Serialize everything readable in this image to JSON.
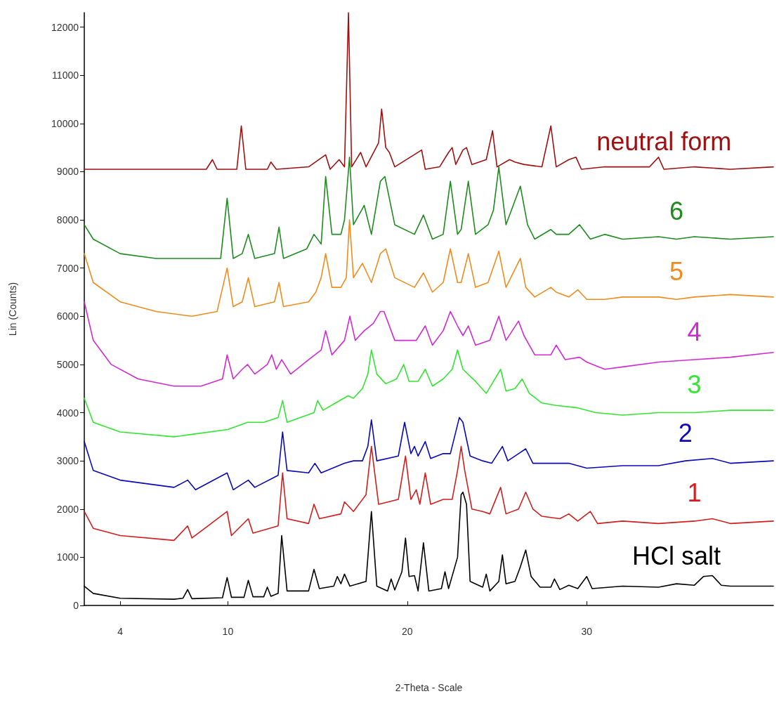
{
  "chart_data": {
    "type": "line",
    "xlabel": "2-Theta - Scale",
    "ylabel": "Lin (Counts)",
    "xlim": [
      2,
      40.4
    ],
    "xticks": [
      4,
      10,
      20,
      30
    ],
    "ylim": [
      0,
      12300
    ],
    "yticks": [
      0,
      1000,
      2000,
      3000,
      4000,
      5000,
      6000,
      7000,
      8000,
      9000,
      10000,
      11000,
      12000
    ],
    "grid": false,
    "legend": false,
    "marker": "none",
    "line_style": "solid",
    "series": [
      {
        "name": "HCl salt",
        "color": "#000000",
        "x": [
          2,
          2.5,
          4,
          7,
          7.5,
          7.76,
          8,
          9.7,
          9.96,
          10.2,
          10.9,
          11.14,
          11.4,
          12,
          12.2,
          12.4,
          12.8,
          13,
          13.3,
          14.5,
          14.8,
          15.1,
          15.9,
          16.1,
          16.3,
          16.5,
          16.8,
          17.7,
          18,
          18.3,
          18.9,
          19.1,
          19.3,
          19.7,
          19.9,
          20.1,
          20.4,
          20.6,
          20.9,
          21.2,
          21.9,
          22.1,
          22.3,
          22.8,
          23,
          23.1,
          23.3,
          23.5,
          24.2,
          24.4,
          24.6,
          25.1,
          25.3,
          25.5,
          26,
          26.3,
          26.6,
          26.9,
          27.4,
          28,
          28.2,
          28.5,
          29,
          29.5,
          30,
          30.3,
          32,
          34,
          35,
          36,
          36.5,
          37,
          37.5,
          38,
          40.4
        ],
        "values": [
          400,
          250,
          150,
          130,
          150,
          330,
          140,
          160,
          580,
          170,
          170,
          520,
          180,
          180,
          380,
          190,
          250,
          1450,
          300,
          300,
          750,
          350,
          400,
          600,
          450,
          650,
          400,
          500,
          1950,
          400,
          300,
          550,
          320,
          700,
          1400,
          600,
          620,
          300,
          1300,
          300,
          350,
          700,
          350,
          1000,
          2300,
          2350,
          2100,
          500,
          380,
          650,
          300,
          500,
          1050,
          450,
          500,
          800,
          1150,
          600,
          380,
          380,
          550,
          330,
          420,
          350,
          600,
          350,
          400,
          380,
          450,
          420,
          600,
          620,
          420,
          400,
          400
        ]
      },
      {
        "name": "1",
        "color": "#d21e1e",
        "x": [
          2,
          2.5,
          4,
          7,
          7.76,
          8,
          9.96,
          10.2,
          11.14,
          11.4,
          12.8,
          13.05,
          13.3,
          14.5,
          14.8,
          15.1,
          16.3,
          16.5,
          17,
          17.7,
          18,
          18.4,
          19.5,
          19.9,
          20.2,
          20.5,
          20.7,
          21,
          21.3,
          22,
          22.5,
          22.8,
          23,
          23.2,
          23.6,
          24.2,
          24.6,
          25.2,
          25.5,
          26.2,
          26.6,
          27,
          27.5,
          28.5,
          29,
          29.5,
          30.2,
          30.6,
          32,
          34,
          36,
          37,
          38,
          40.4
        ],
        "values": [
          1950,
          1600,
          1450,
          1350,
          1650,
          1400,
          1950,
          1450,
          1800,
          1500,
          1650,
          2750,
          1800,
          1700,
          2100,
          1800,
          1900,
          2150,
          1950,
          2300,
          3300,
          2100,
          2200,
          3100,
          2200,
          2400,
          2100,
          2750,
          2100,
          2200,
          2200,
          2800,
          3300,
          2800,
          2000,
          1950,
          1900,
          2450,
          1900,
          2000,
          2350,
          2000,
          1850,
          1800,
          1900,
          1750,
          1950,
          1700,
          1750,
          1700,
          1750,
          1800,
          1700,
          1750
        ]
      },
      {
        "name": "2",
        "color": "#0a0aba",
        "x": [
          2,
          2.5,
          4,
          7,
          7.76,
          8.2,
          9.96,
          10.3,
          11.14,
          11.5,
          12.8,
          13.05,
          13.3,
          14.5,
          14.85,
          15.2,
          16.5,
          17,
          17.5,
          17.8,
          18,
          18.3,
          19.5,
          19.85,
          20.2,
          20.4,
          20.6,
          21,
          21.3,
          22,
          22.4,
          22.9,
          23.1,
          23.5,
          24.2,
          24.7,
          25.3,
          25.6,
          26.2,
          26.6,
          27,
          28,
          29,
          30,
          32,
          34,
          35.5,
          37,
          38,
          40.4
        ],
        "values": [
          3400,
          2800,
          2600,
          2450,
          2600,
          2400,
          2750,
          2400,
          2600,
          2450,
          2700,
          3600,
          2800,
          2750,
          2950,
          2750,
          2950,
          3000,
          3000,
          3300,
          3850,
          3000,
          3100,
          3800,
          3150,
          3300,
          3100,
          3400,
          3050,
          3150,
          3150,
          3900,
          3800,
          3100,
          3000,
          2950,
          3300,
          3000,
          3150,
          3250,
          2950,
          2950,
          2950,
          2850,
          2900,
          2900,
          3000,
          3050,
          2950,
          3000
        ]
      },
      {
        "name": "3",
        "color": "#32e632",
        "x": [
          2,
          2.5,
          4,
          7,
          8,
          10,
          11.1,
          12,
          12.8,
          13.05,
          13.3,
          14.8,
          15,
          15.3,
          16,
          16.7,
          17,
          17.5,
          17.8,
          18,
          18.3,
          18.8,
          19.4,
          19.8,
          20.1,
          20.6,
          21,
          21.4,
          22,
          22.5,
          22.8,
          23.1,
          23.8,
          24.4,
          25.2,
          25.5,
          26,
          26.4,
          26.8,
          27.5,
          28.3,
          29.5,
          30.5,
          32,
          34,
          36,
          38,
          40.4
        ],
        "values": [
          4300,
          3800,
          3600,
          3500,
          3550,
          3650,
          3800,
          3800,
          3900,
          4250,
          3800,
          4000,
          4250,
          4050,
          4200,
          4350,
          4300,
          4500,
          4800,
          5300,
          4800,
          4600,
          4700,
          5000,
          4650,
          4650,
          4900,
          4550,
          4700,
          4900,
          5300,
          4900,
          4650,
          4400,
          4900,
          4450,
          4500,
          4700,
          4400,
          4200,
          4150,
          4100,
          4000,
          3950,
          4000,
          4000,
          4050,
          4050
        ]
      },
      {
        "name": "4",
        "color": "#d22ad2",
        "x": [
          2,
          2.5,
          3.5,
          5,
          7,
          8.5,
          9.7,
          9.96,
          10.3,
          10.8,
          11.1,
          11.5,
          12.2,
          12.45,
          12.7,
          13,
          13.5,
          14.5,
          15.2,
          15.45,
          15.8,
          16.5,
          16.8,
          17.1,
          17.6,
          18.1,
          18.5,
          18.7,
          19.3,
          20.5,
          21,
          21.4,
          22,
          22.4,
          22.8,
          23.1,
          23.4,
          23.8,
          24.6,
          25.1,
          25.5,
          26.2,
          26.5,
          27.1,
          28,
          28.3,
          28.8,
          29.6,
          30,
          31,
          32,
          34,
          36,
          38,
          40.4
        ],
        "values": [
          6300,
          5500,
          5000,
          4700,
          4550,
          4550,
          4700,
          5200,
          4700,
          4900,
          5000,
          4800,
          5000,
          5200,
          4900,
          5100,
          4800,
          5100,
          5300,
          5700,
          5200,
          5500,
          6000,
          5500,
          5700,
          5850,
          6100,
          6100,
          5500,
          5500,
          5800,
          5400,
          5700,
          6100,
          5800,
          5600,
          5800,
          5400,
          5500,
          6000,
          5500,
          5900,
          5600,
          5200,
          5200,
          5400,
          5100,
          5150,
          5050,
          4900,
          4950,
          5050,
          5100,
          5150,
          5250
        ]
      },
      {
        "name": "5",
        "color": "#f08c1e",
        "x": [
          2,
          2.5,
          4,
          6,
          8,
          9.4,
          9.96,
          10.3,
          10.8,
          11.14,
          11.5,
          12.6,
          12.85,
          13.1,
          14.5,
          14.9,
          15.2,
          15.45,
          15.8,
          16.3,
          16.6,
          16.78,
          17,
          17.5,
          18,
          18.5,
          18.8,
          19.3,
          20.4,
          20.9,
          21.4,
          22,
          22.4,
          22.8,
          23,
          23.4,
          23.8,
          24.5,
          25.1,
          25.5,
          26.3,
          26.6,
          27.1,
          28,
          28.3,
          29,
          29.5,
          30,
          31,
          32,
          34,
          35,
          36,
          38,
          40.4
        ],
        "values": [
          7300,
          6700,
          6300,
          6100,
          6000,
          6100,
          7000,
          6200,
          6300,
          6800,
          6200,
          6300,
          6700,
          6200,
          6300,
          6500,
          6800,
          7300,
          6600,
          6600,
          6800,
          8000,
          6800,
          7100,
          6700,
          7300,
          7400,
          6800,
          6600,
          6900,
          6500,
          6700,
          7400,
          6700,
          6700,
          7300,
          6600,
          6700,
          7350,
          6600,
          7200,
          6600,
          6400,
          6600,
          6500,
          6400,
          6550,
          6350,
          6350,
          6400,
          6400,
          6350,
          6400,
          6450,
          6400
        ]
      },
      {
        "name": "6",
        "color": "#1e8c1e",
        "x": [
          2,
          2.5,
          4,
          6,
          8,
          9.6,
          9.96,
          10.3,
          10.8,
          11.14,
          11.5,
          12.6,
          12.85,
          13.1,
          14.4,
          14.8,
          15.2,
          15.45,
          15.8,
          16.3,
          16.5,
          16.78,
          17,
          17.6,
          18,
          18.5,
          18.75,
          19.3,
          20.4,
          20.9,
          21.4,
          22,
          22.4,
          22.8,
          23,
          23.4,
          23.8,
          24.5,
          24.8,
          25.1,
          25.5,
          26.3,
          26.7,
          27.1,
          28,
          28.3,
          29,
          29.6,
          30.2,
          31,
          32,
          34,
          35,
          36,
          38,
          40.4
        ],
        "values": [
          7900,
          7600,
          7300,
          7200,
          7200,
          7200,
          8450,
          7200,
          7300,
          7700,
          7200,
          7300,
          7850,
          7200,
          7400,
          7700,
          7500,
          8900,
          7700,
          7700,
          8000,
          9300,
          7900,
          8300,
          7700,
          8800,
          8900,
          7900,
          7700,
          8100,
          7600,
          7700,
          8800,
          7700,
          7800,
          8800,
          7700,
          7900,
          8200,
          9100,
          7900,
          8700,
          7900,
          7600,
          7800,
          7700,
          7700,
          7900,
          7600,
          7700,
          7600,
          7650,
          7600,
          7650,
          7600,
          7650
        ]
      },
      {
        "name": "neutral form",
        "color": "#a01010",
        "x": [
          2,
          8.8,
          9.14,
          9.4,
          10.5,
          10.75,
          11,
          12.2,
          12.4,
          12.7,
          14.5,
          15.45,
          15.7,
          16.2,
          16.5,
          16.72,
          16.9,
          17.4,
          17.7,
          18.4,
          18.57,
          18.8,
          19,
          19.3,
          20.8,
          21,
          21.8,
          22.3,
          22.5,
          22.7,
          23.1,
          23.3,
          23.6,
          24.4,
          24.75,
          25,
          25.7,
          26,
          26.5,
          27.5,
          28,
          28.3,
          29,
          29.4,
          29.7,
          31,
          33.5,
          34,
          34.3,
          36,
          38,
          40.4
        ],
        "values": [
          9050,
          9050,
          9250,
          9050,
          9050,
          9950,
          9050,
          9050,
          9200,
          9050,
          9100,
          9350,
          9050,
          9250,
          9100,
          12300,
          9100,
          9400,
          9100,
          9600,
          10300,
          9500,
          9400,
          9100,
          9450,
          9050,
          9100,
          9400,
          9500,
          9150,
          9450,
          9500,
          9150,
          9250,
          9850,
          9100,
          9250,
          9200,
          9150,
          9100,
          9950,
          9100,
          9250,
          9300,
          9050,
          9100,
          9100,
          9300,
          9050,
          9100,
          9050,
          9100
        ]
      }
    ]
  }
}
